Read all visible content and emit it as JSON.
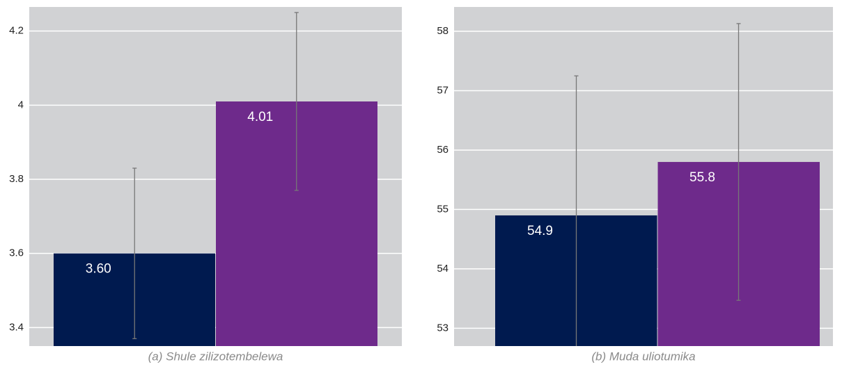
{
  "chart_data": [
    {
      "type": "bar",
      "caption": "(a) Shule zilizotembelewa",
      "values": [
        3.6,
        4.01
      ],
      "value_labels": [
        "3.60",
        "4.01"
      ],
      "errors": [
        0.23,
        0.24
      ],
      "colors": [
        "#001a4f",
        "#6e2a8b"
      ],
      "ylim": [
        3.35,
        4.265
      ],
      "yticks": [
        3.4,
        3.6,
        3.8,
        4,
        4.2
      ],
      "grid": true
    },
    {
      "type": "bar",
      "caption": "(b) Muda uliotumika",
      "values": [
        54.9,
        55.8
      ],
      "errors": [
        2.35,
        2.33
      ],
      "colors": [
        "#001a4f",
        "#6e2a8b"
      ],
      "ylim": [
        52.7,
        58.41
      ],
      "yticks": [
        53,
        54,
        55,
        56,
        57,
        58
      ],
      "grid": true
    }
  ]
}
